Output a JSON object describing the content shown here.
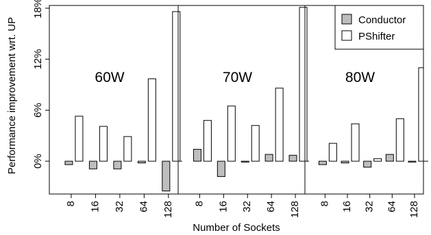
{
  "chart_data": {
    "type": "bar",
    "xlabel": "Number of Sockets",
    "ylabel": "Performance improvement wrt. UP",
    "ylim": [
      -1.6,
      18
    ],
    "yticks": [
      0,
      6,
      12,
      18
    ],
    "ytick_labels": [
      "0%",
      "6%",
      "12%",
      "18%"
    ],
    "categories": [
      "8",
      "16",
      "32",
      "64",
      "128"
    ],
    "legend": {
      "position": "top-right",
      "entries": [
        "Conductor",
        "PShifter"
      ]
    },
    "series_colors": {
      "Conductor": "#bebebe",
      "PShifter": "#ffffff"
    },
    "grid": false,
    "panels": [
      {
        "label": "60W",
        "series": [
          {
            "name": "Conductor",
            "values": [
              -0.4,
              -0.9,
              -0.9,
              -0.2,
              -3.5
            ]
          },
          {
            "name": "PShifter",
            "values": [
              5.3,
              4.1,
              2.9,
              9.7,
              17.6
            ]
          }
        ]
      },
      {
        "label": "70W",
        "series": [
          {
            "name": "Conductor",
            "values": [
              1.4,
              -1.8,
              -0.1,
              0.8,
              0.7
            ]
          },
          {
            "name": "PShifter",
            "values": [
              4.8,
              6.5,
              4.2,
              8.6,
              18.1
            ]
          }
        ]
      },
      {
        "label": "80W",
        "series": [
          {
            "name": "Conductor",
            "values": [
              -0.4,
              -0.2,
              -0.7,
              0.8,
              -0.1
            ]
          },
          {
            "name": "PShifter",
            "values": [
              2.1,
              4.4,
              0.3,
              5.0,
              11.0
            ]
          }
        ]
      }
    ]
  }
}
